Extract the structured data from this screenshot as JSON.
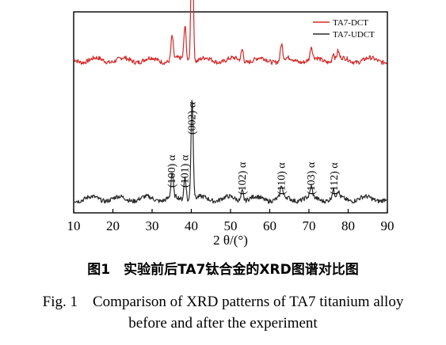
{
  "chart_data": {
    "type": "line",
    "xlabel": "2 θ/(°)",
    "ylabel": "",
    "xlim": [
      10,
      90
    ],
    "x_ticks": [
      10,
      20,
      30,
      40,
      50,
      60,
      70,
      80,
      90
    ],
    "y_ticks": false,
    "grid": false,
    "legend": "top-right",
    "series": [
      {
        "name": "TA7-DCT",
        "color": "#d42a2a",
        "baseline": 0.76,
        "peaks": [
          {
            "x": 35.1,
            "h": 0.12
          },
          {
            "x": 38.4,
            "h": 0.17
          },
          {
            "x": 40.2,
            "h": 0.7
          },
          {
            "x": 53.0,
            "h": 0.06
          },
          {
            "x": 63.0,
            "h": 0.08
          },
          {
            "x": 70.6,
            "h": 0.06
          },
          {
            "x": 76.2,
            "h": 0.04
          },
          {
            "x": 77.4,
            "h": 0.04
          }
        ]
      },
      {
        "name": "TA7-UDCT",
        "color": "#2b2b2b",
        "baseline": 0.07,
        "peaks": [
          {
            "x": 35.1,
            "h": 0.12
          },
          {
            "x": 38.4,
            "h": 0.12
          },
          {
            "x": 40.2,
            "h": 0.51
          },
          {
            "x": 53.0,
            "h": 0.05
          },
          {
            "x": 63.0,
            "h": 0.06
          },
          {
            "x": 70.6,
            "h": 0.05
          },
          {
            "x": 76.2,
            "h": 0.04
          },
          {
            "x": 77.4,
            "h": 0.03
          }
        ]
      }
    ],
    "annotations": [
      {
        "text": "(100) α",
        "x": 35.1
      },
      {
        "text": "(101) α",
        "x": 38.4
      },
      {
        "text": "(002) α",
        "x": 40.2
      },
      {
        "text": "(102) α",
        "x": 53.0
      },
      {
        "text": "(110) α",
        "x": 63.0
      },
      {
        "text": "(103) α",
        "x": 70.6
      },
      {
        "text": "(112) α",
        "x": 76.5
      }
    ]
  },
  "caption": {
    "zh": "图1　实验前后TA7钛合金的XRD图谱对比图",
    "en_line1": "Fig. 1　Comparison of XRD patterns of TA7 titanium alloy",
    "en_line2": "before and after the experiment"
  }
}
